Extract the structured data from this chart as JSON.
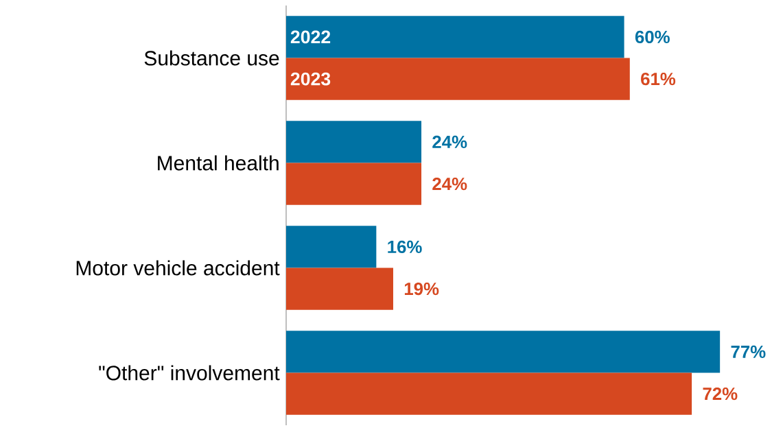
{
  "chart_data": {
    "type": "bar",
    "orientation": "horizontal",
    "legend": false,
    "categories": [
      "Substance use",
      "Mental health",
      "Motor vehicle accident",
      "\"Other\" involvement"
    ],
    "series": [
      {
        "name": "2022",
        "color": "#0072a3",
        "values": [
          60,
          24,
          16,
          77
        ],
        "value_labels": [
          "60%",
          "24%",
          "16%",
          "77%"
        ]
      },
      {
        "name": "2023",
        "color": "#d64820",
        "values": [
          61,
          24,
          19,
          72
        ],
        "value_labels": [
          "61%",
          "24%",
          "19%",
          "72%"
        ]
      }
    ]
  }
}
